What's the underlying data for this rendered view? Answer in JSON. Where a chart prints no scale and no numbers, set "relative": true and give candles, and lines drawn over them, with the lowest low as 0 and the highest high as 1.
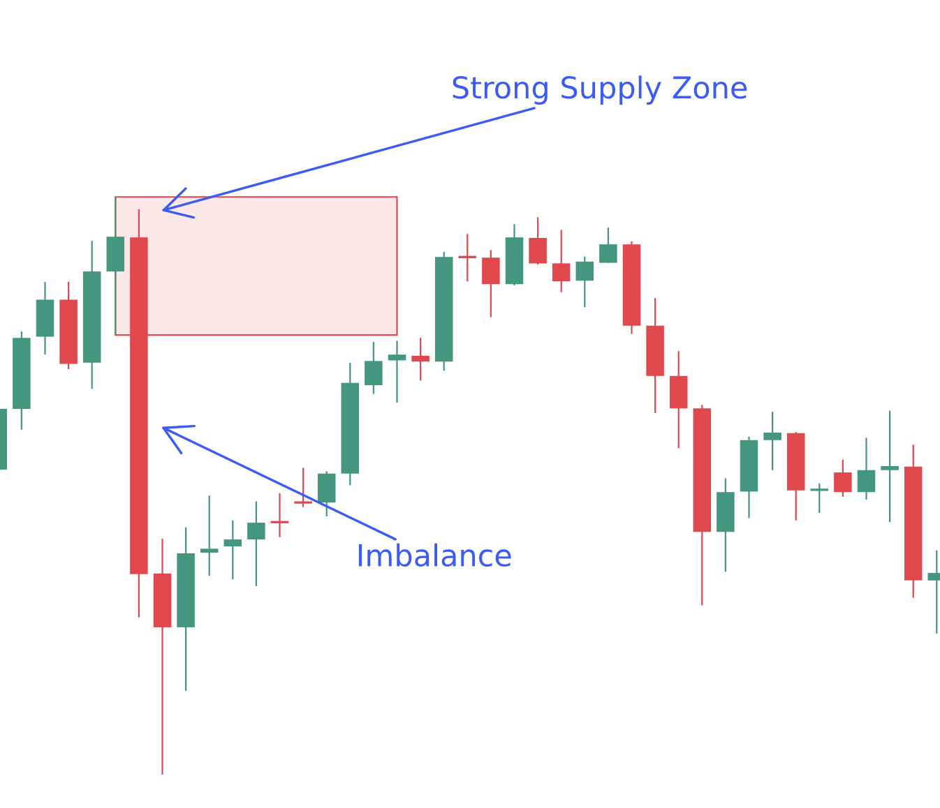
{
  "chart_data": {
    "type": "candlestick",
    "relative": true,
    "categories": [
      null,
      null,
      null,
      null,
      null,
      null,
      null,
      null,
      null,
      null,
      null,
      null,
      null,
      null,
      null,
      null,
      null,
      null,
      null,
      null,
      null,
      null,
      null,
      null,
      null,
      null,
      null,
      null,
      null,
      null,
      null,
      null,
      null,
      null,
      null,
      null,
      null,
      null,
      null,
      null,
      null
    ],
    "ohlc": [
      [
        0.528,
        0.633,
        0.528,
        0.633
      ],
      [
        0.633,
        0.767,
        0.597,
        0.756
      ],
      [
        0.758,
        0.853,
        0.727,
        0.822
      ],
      [
        0.822,
        0.853,
        0.702,
        0.711
      ],
      [
        0.713,
        0.924,
        0.668,
        0.871
      ],
      [
        0.871,
        1.0,
        0.761,
        0.931
      ],
      [
        0.93,
        0.979,
        0.272,
        0.347
      ],
      [
        0.348,
        0.408,
        0.0,
        0.255
      ],
      [
        0.255,
        0.428,
        0.145,
        0.383
      ],
      [
        0.384,
        0.483,
        0.344,
        0.391
      ],
      [
        0.395,
        0.44,
        0.338,
        0.407
      ],
      [
        0.407,
        0.473,
        0.326,
        0.436
      ],
      [
        0.438,
        0.487,
        0.411,
        0.436
      ],
      [
        0.472,
        0.531,
        0.463,
        0.47
      ],
      [
        0.471,
        0.525,
        0.447,
        0.521
      ],
      [
        0.521,
        0.713,
        0.501,
        0.678
      ],
      [
        0.674,
        0.749,
        0.659,
        0.716
      ],
      [
        0.717,
        0.751,
        0.644,
        0.727
      ],
      [
        0.725,
        0.756,
        0.682,
        0.715
      ],
      [
        0.715,
        0.905,
        0.699,
        0.896
      ],
      [
        0.897,
        0.936,
        0.854,
        0.895
      ],
      [
        0.895,
        0.908,
        0.792,
        0.849
      ],
      [
        0.849,
        0.953,
        0.847,
        0.93
      ],
      [
        0.929,
        0.965,
        0.883,
        0.885
      ],
      [
        0.885,
        0.943,
        0.835,
        0.854
      ],
      [
        0.855,
        0.897,
        0.809,
        0.888
      ],
      [
        0.886,
        0.947,
        0.886,
        0.918
      ],
      [
        0.918,
        0.923,
        0.763,
        0.777
      ],
      [
        0.777,
        0.825,
        0.626,
        0.69
      ],
      [
        0.69,
        0.733,
        0.565,
        0.634
      ],
      [
        0.634,
        0.64,
        0.293,
        0.42
      ],
      [
        0.42,
        0.513,
        0.351,
        0.489
      ],
      [
        0.49,
        0.585,
        0.444,
        0.579
      ],
      [
        0.579,
        0.628,
        0.527,
        0.592
      ],
      [
        0.591,
        0.593,
        0.44,
        0.492
      ],
      [
        0.492,
        0.504,
        0.453,
        0.494
      ],
      [
        0.523,
        0.545,
        0.481,
        0.489
      ],
      [
        0.489,
        0.583,
        0.476,
        0.527
      ],
      [
        0.527,
        0.63,
        0.437,
        0.534
      ],
      [
        0.533,
        0.571,
        0.306,
        0.336
      ],
      [
        0.336,
        0.388,
        0.244,
        0.349
      ]
    ],
    "colors": [
      "#44967f",
      "#44967f",
      "#44967f",
      "#e0484d",
      "#44967f",
      "#44967f",
      "#e0484d",
      "#e0484d",
      "#44967f",
      "#44967f",
      "#44967f",
      "#44967f",
      "#e0484d",
      "#e0484d",
      "#44967f",
      "#44967f",
      "#44967f",
      "#44967f",
      "#e0484d",
      "#44967f",
      "#e0484d",
      "#e0484d",
      "#44967f",
      "#e0484d",
      "#e0484d",
      "#44967f",
      "#44967f",
      "#e0484d",
      "#e0484d",
      "#e0484d",
      "#e0484d",
      "#44967f",
      "#44967f",
      "#44967f",
      "#e0484d",
      "#44967f",
      "#e0484d",
      "#44967f",
      "#44967f",
      "#e0484d",
      "#44967f"
    ],
    "bands": [
      {
        "axis": "y",
        "from": 0.761,
        "to": 1.0,
        "color": "#e0484d"
      }
    ],
    "annotations": [
      "Strong Supply Zone",
      "Imbalance"
    ]
  }
}
